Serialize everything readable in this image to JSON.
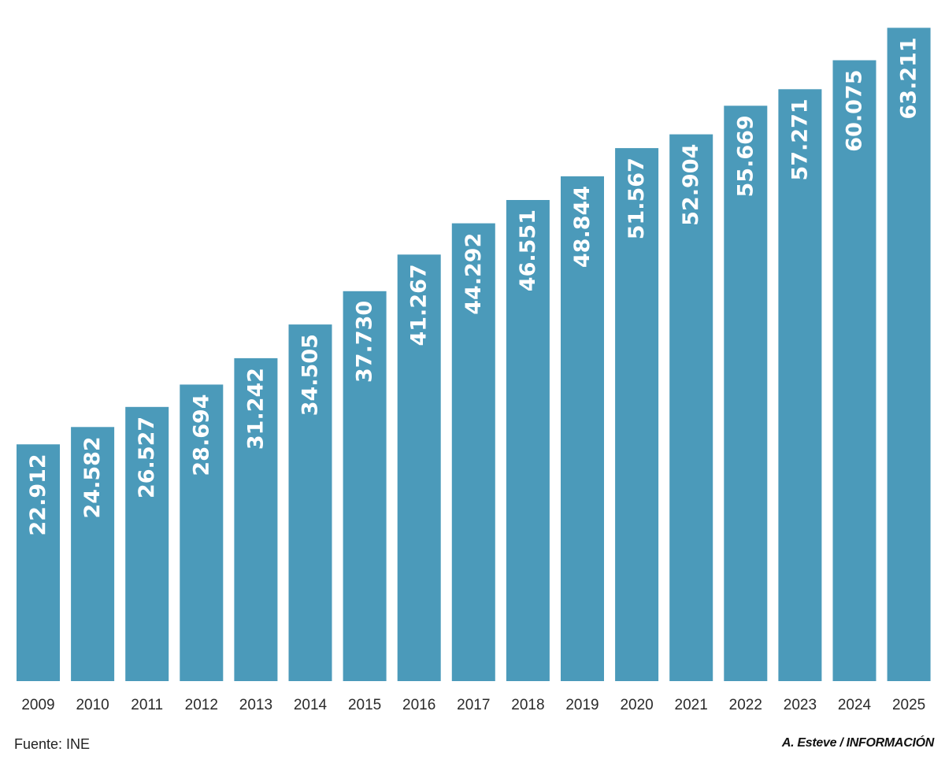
{
  "chart_data": {
    "type": "bar",
    "categories": [
      "2009",
      "2010",
      "2011",
      "2012",
      "2013",
      "2014",
      "2015",
      "2016",
      "2017",
      "2018",
      "2019",
      "2020",
      "2021",
      "2022",
      "2023",
      "2024",
      "2025"
    ],
    "values": [
      22912,
      24582,
      26527,
      28694,
      31242,
      34505,
      37730,
      41267,
      44292,
      46551,
      48844,
      51567,
      52904,
      55669,
      57271,
      60075,
      63211
    ],
    "value_labels": [
      "22.912",
      "24.582",
      "26.527",
      "28.694",
      "31.242",
      "34.505",
      "37.730",
      "41.267",
      "44.292",
      "46.551",
      "48.844",
      "51.567",
      "52.904",
      "55.669",
      "57.271",
      "60.075",
      "63.211"
    ],
    "title": "",
    "xlabel": "",
    "ylabel": "",
    "ylim": [
      0,
      64300
    ],
    "grid": false,
    "bar_color": "#4b9aba"
  },
  "footer": {
    "source": "Fuente: INE",
    "credit": "A. Esteve / INFORMACIÓN"
  }
}
